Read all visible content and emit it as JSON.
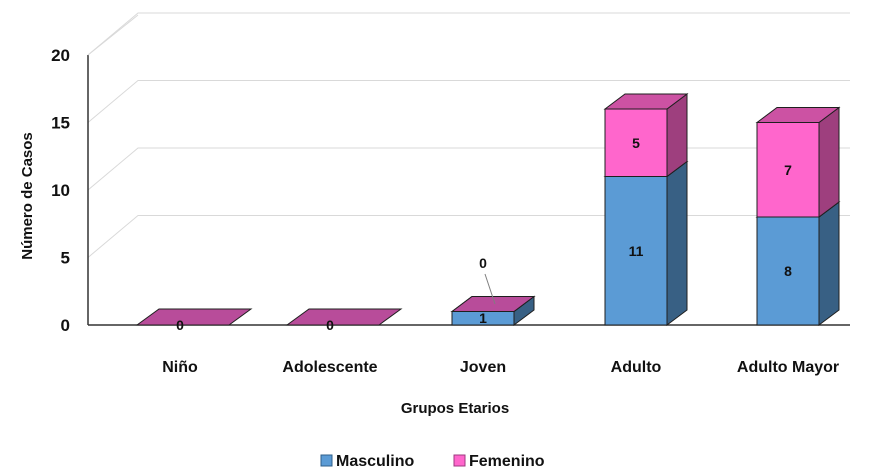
{
  "chart_data": {
    "type": "bar",
    "stacked": true,
    "style": "3d",
    "categories": [
      "Niño",
      "Adolescente",
      "Joven",
      "Adulto",
      "Adulto Mayor"
    ],
    "series": [
      {
        "name": "Masculino",
        "values": [
          0,
          0,
          1,
          11,
          8
        ],
        "color": "#5b9bd5"
      },
      {
        "name": "Femenino",
        "values": [
          0,
          0,
          0,
          5,
          7
        ],
        "color": "#ff66cc"
      }
    ],
    "data_labels": {
      "Masculino": [
        "",
        "",
        "1",
        "11",
        "8"
      ],
      "Femenino": [
        "0",
        "0",
        "0",
        "5",
        "7"
      ]
    },
    "xlabel": "Grupos Etarios",
    "ylabel": "Número de Casos",
    "ylim": [
      0,
      20
    ],
    "yticks": [
      0,
      5,
      10,
      15,
      20
    ],
    "grid": true,
    "legend": "bottom"
  }
}
